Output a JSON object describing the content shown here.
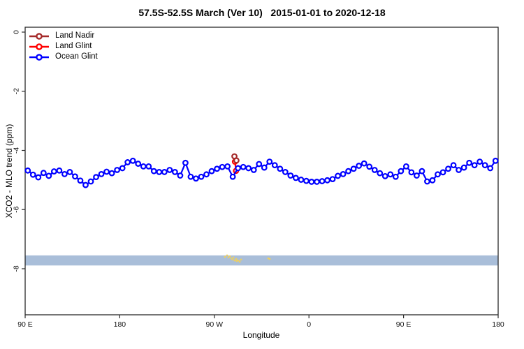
{
  "header": {
    "title": "57.5S-52.5S March (Ver 10)   2015-01-01 to 2020-12-18"
  },
  "chart_data": {
    "type": "line",
    "title": "57.5S-52.5S March (Ver 10)   2015-01-01 to 2020-12-18",
    "xlabel": "Longitude",
    "ylabel": "XCO2 - MLO trend (ppm)",
    "grid": false,
    "legend_position": "top-left",
    "background": "#ffffff",
    "axis_color": "#2b2b2b",
    "x_axis": {
      "note": "longitude axis starting at 90E going eastward; pos is degrees from left edge",
      "range": [
        0,
        450
      ],
      "ticks": [
        {
          "pos": 0,
          "label": "90 E"
        },
        {
          "pos": 90,
          "label": "180"
        },
        {
          "pos": 180,
          "label": "90 W"
        },
        {
          "pos": 270,
          "label": "0"
        },
        {
          "pos": 360,
          "label": "90 E"
        },
        {
          "pos": 450,
          "label": "180"
        }
      ]
    },
    "y_axis": {
      "range": [
        -9.6,
        0.17
      ],
      "ticks": [
        {
          "pos": 0,
          "label": "0"
        },
        {
          "pos": -2,
          "label": "-2"
        },
        {
          "pos": -4,
          "label": "-4"
        },
        {
          "pos": -6,
          "label": "-6"
        },
        {
          "pos": -8,
          "label": "-8"
        }
      ]
    },
    "series": [
      {
        "name": "Land Nadir",
        "color": "#A52A2A",
        "points": [
          [
            199.1,
            -4.2
          ],
          [
            201.0,
            -4.34
          ]
        ]
      },
      {
        "name": "Land Glint",
        "color": "#FF0000",
        "points": [
          [
            199.6,
            -4.38
          ],
          [
            200.6,
            -4.69
          ]
        ]
      },
      {
        "name": "Ocean Glint",
        "color": "#0000FF",
        "x_start": 2.5,
        "x_step": 5,
        "values": [
          -4.68,
          -4.82,
          -4.91,
          -4.76,
          -4.86,
          -4.71,
          -4.68,
          -4.8,
          -4.73,
          -4.88,
          -5.02,
          -5.17,
          -5.05,
          -4.9,
          -4.8,
          -4.72,
          -4.77,
          -4.66,
          -4.6,
          -4.4,
          -4.35,
          -4.45,
          -4.54,
          -4.54,
          -4.7,
          -4.73,
          -4.73,
          -4.66,
          -4.73,
          -4.85,
          -4.42,
          -4.89,
          -4.95,
          -4.89,
          -4.81,
          -4.7,
          -4.62,
          -4.56,
          -4.54,
          -4.89,
          -4.6,
          -4.56,
          -4.6,
          -4.66,
          -4.46,
          -4.58,
          -4.38,
          -4.5,
          -4.62,
          -4.73,
          -4.85,
          -4.93,
          -4.99,
          -5.03,
          -5.06,
          -5.06,
          -5.04,
          -5.01,
          -4.97,
          -4.86,
          -4.8,
          -4.7,
          -4.62,
          -4.52,
          -4.44,
          -4.55,
          -4.66,
          -4.77,
          -4.87,
          -4.81,
          -4.89,
          -4.7,
          -4.54,
          -4.74,
          -4.85,
          -4.7,
          -5.05,
          -5.01,
          -4.81,
          -4.74,
          -4.62,
          -4.5,
          -4.66,
          -4.58,
          -4.42,
          -4.5,
          -4.38,
          -4.5,
          -4.6,
          -4.35
        ]
      }
    ],
    "ocean_band": {
      "color": "#A9BED9",
      "y_from": -7.55,
      "y_to": -7.89
    },
    "land_map_points": {
      "color": "#EDCF5F",
      "points": [
        [
          190.1,
          -7.6
        ],
        [
          192.1,
          -7.55
        ],
        [
          193.4,
          -7.62
        ],
        [
          194.8,
          -7.58
        ],
        [
          196.1,
          -7.65
        ],
        [
          197.4,
          -7.69
        ],
        [
          198.1,
          -7.62
        ],
        [
          199.4,
          -7.72
        ],
        [
          200.8,
          -7.67
        ],
        [
          201.4,
          -7.74
        ],
        [
          202.7,
          -7.72
        ],
        [
          204.1,
          -7.76
        ],
        [
          205.4,
          -7.69
        ],
        [
          231.3,
          -7.65
        ],
        [
          232.7,
          -7.67
        ]
      ]
    }
  }
}
